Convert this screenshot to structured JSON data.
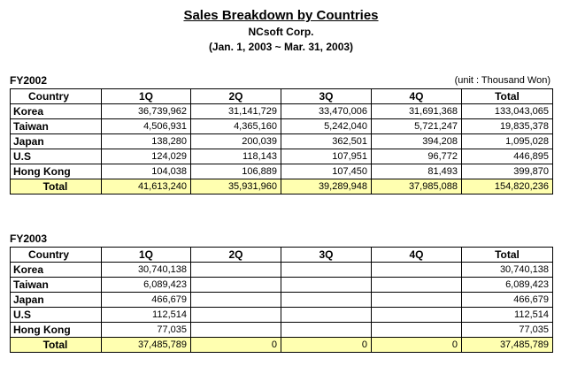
{
  "header": {
    "title": "Sales Breakdown by Countries",
    "company": "NCsoft Corp.",
    "period": "(Jan. 1, 2003 ~ Mar. 31, 2003)"
  },
  "fy2002": {
    "label": "FY2002",
    "unit": "(unit : Thousand Won)",
    "columns": [
      "Country",
      "1Q",
      "2Q",
      "3Q",
      "4Q",
      "Total"
    ],
    "rows": [
      [
        "Korea",
        "36,739,962",
        "31,141,729",
        "33,470,006",
        "31,691,368",
        "133,043,065"
      ],
      [
        "Taiwan",
        "4,506,931",
        "4,365,160",
        "5,242,040",
        "5,721,247",
        "19,835,378"
      ],
      [
        "Japan",
        "138,280",
        "200,039",
        "362,501",
        "394,208",
        "1,095,028"
      ],
      [
        "U.S",
        "124,029",
        "118,143",
        "107,951",
        "96,772",
        "446,895"
      ],
      [
        "Hong Kong",
        "104,038",
        "106,889",
        "107,450",
        "81,493",
        "399,870"
      ]
    ],
    "total": [
      "Total",
      "41,613,240",
      "35,931,960",
      "39,289,948",
      "37,985,088",
      "154,820,236"
    ]
  },
  "fy2003": {
    "label": "FY2003",
    "columns": [
      "Country",
      "1Q",
      "2Q",
      "3Q",
      "4Q",
      "Total"
    ],
    "rows": [
      [
        "Korea",
        "30,740,138",
        "",
        "",
        "",
        "30,740,138"
      ],
      [
        "Taiwan",
        "6,089,423",
        "",
        "",
        "",
        "6,089,423"
      ],
      [
        "Japan",
        "466,679",
        "",
        "",
        "",
        "466,679"
      ],
      [
        "U.S",
        "112,514",
        "",
        "",
        "",
        "112,514"
      ],
      [
        "Hong Kong",
        "77,035",
        "",
        "",
        "",
        "77,035"
      ]
    ],
    "total": [
      "Total",
      "37,485,789",
      "0",
      "0",
      "0",
      "37,485,789"
    ]
  }
}
